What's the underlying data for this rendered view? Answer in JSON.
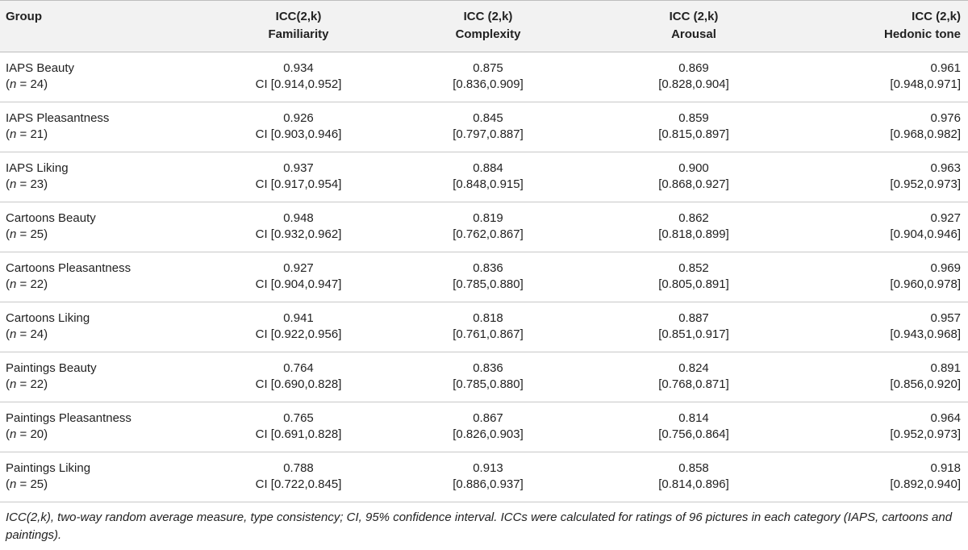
{
  "table": {
    "headers": [
      {
        "line1": "Group",
        "line2": ""
      },
      {
        "line1": "ICC(2,k)",
        "line2": "Familiarity"
      },
      {
        "line1": "ICC (2,k)",
        "line2": "Complexity"
      },
      {
        "line1": "ICC (2,k)",
        "line2": "Arousal"
      },
      {
        "line1": "ICC (2,k)",
        "line2": "Hedonic tone"
      }
    ],
    "rows": [
      {
        "group": "IAPS Beauty",
        "n_prefix": "(",
        "n_var": "n",
        "n_rest": " = 24)",
        "cells": [
          {
            "value": "0.934",
            "ci": "CI [0.914,0.952]"
          },
          {
            "value": "0.875",
            "ci": "[0.836,0.909]"
          },
          {
            "value": "0.869",
            "ci": "[0.828,0.904]"
          },
          {
            "value": "0.961",
            "ci": "[0.948,0.971]"
          }
        ]
      },
      {
        "group": "IAPS Pleasantness",
        "n_prefix": "(",
        "n_var": "n",
        "n_rest": " = 21)",
        "cells": [
          {
            "value": "0.926",
            "ci": "CI [0.903,0.946]"
          },
          {
            "value": "0.845",
            "ci": "[0.797,0.887]"
          },
          {
            "value": "0.859",
            "ci": "[0.815,0.897]"
          },
          {
            "value": "0.976",
            "ci": "[0.968,0.982]"
          }
        ]
      },
      {
        "group": "IAPS Liking",
        "n_prefix": "(",
        "n_var": "n",
        "n_rest": " = 23)",
        "cells": [
          {
            "value": "0.937",
            "ci": "CI [0.917,0.954]"
          },
          {
            "value": "0.884",
            "ci": "[0.848,0.915]"
          },
          {
            "value": "0.900",
            "ci": "[0.868,0.927]"
          },
          {
            "value": "0.963",
            "ci": "[0.952,0.973]"
          }
        ]
      },
      {
        "group": "Cartoons Beauty",
        "n_prefix": "(",
        "n_var": "n",
        "n_rest": " = 25)",
        "cells": [
          {
            "value": "0.948",
            "ci": "CI [0.932,0.962]"
          },
          {
            "value": "0.819",
            "ci": "[0.762,0.867]"
          },
          {
            "value": "0.862",
            "ci": "[0.818,0.899]"
          },
          {
            "value": "0.927",
            "ci": "[0.904,0.946]"
          }
        ]
      },
      {
        "group": "Cartoons Pleasantness",
        "n_prefix": "(",
        "n_var": "n",
        "n_rest": " = 22)",
        "cells": [
          {
            "value": "0.927",
            "ci": "CI [0.904,0.947]"
          },
          {
            "value": "0.836",
            "ci": "[0.785,0.880]"
          },
          {
            "value": "0.852",
            "ci": "[0.805,0.891]"
          },
          {
            "value": "0.969",
            "ci": "[0.960,0.978]"
          }
        ]
      },
      {
        "group": "Cartoons Liking",
        "n_prefix": "(",
        "n_var": "n",
        "n_rest": " = 24)",
        "cells": [
          {
            "value": "0.941",
            "ci": "CI [0.922,0.956]"
          },
          {
            "value": "0.818",
            "ci": "[0.761,0.867]"
          },
          {
            "value": "0.887",
            "ci": "[0.851,0.917]"
          },
          {
            "value": "0.957",
            "ci": "[0.943,0.968]"
          }
        ]
      },
      {
        "group": "Paintings Beauty",
        "n_prefix": "(",
        "n_var": "n",
        "n_rest": " = 22)",
        "cells": [
          {
            "value": "0.764",
            "ci": "CI [0.690,0.828]"
          },
          {
            "value": "0.836",
            "ci": "[0.785,0.880]"
          },
          {
            "value": "0.824",
            "ci": "[0.768,0.871]"
          },
          {
            "value": "0.891",
            "ci": "[0.856,0.920]"
          }
        ]
      },
      {
        "group": "Paintings Pleasantness",
        "n_prefix": "(",
        "n_var": "n",
        "n_rest": " = 20)",
        "cells": [
          {
            "value": "0.765",
            "ci": "CI [0.691,0.828]"
          },
          {
            "value": "0.867",
            "ci": "[0.826,0.903]"
          },
          {
            "value": "0.814",
            "ci": "[0.756,0.864]"
          },
          {
            "value": "0.964",
            "ci": "[0.952,0.973]"
          }
        ]
      },
      {
        "group": "Paintings Liking",
        "n_prefix": "(",
        "n_var": "n",
        "n_rest": " = 25)",
        "cells": [
          {
            "value": "0.788",
            "ci": "CI [0.722,0.845]"
          },
          {
            "value": "0.913",
            "ci": "[0.886,0.937]"
          },
          {
            "value": "0.858",
            "ci": "[0.814,0.896]"
          },
          {
            "value": "0.918",
            "ci": "[0.892,0.940]"
          }
        ]
      }
    ]
  },
  "footnote": "ICC(2,k), two-way random average measure, type consistency; CI, 95% confidence interval. ICCs were calculated for ratings of 96 pictures in each category (IAPS, cartoons and paintings)."
}
